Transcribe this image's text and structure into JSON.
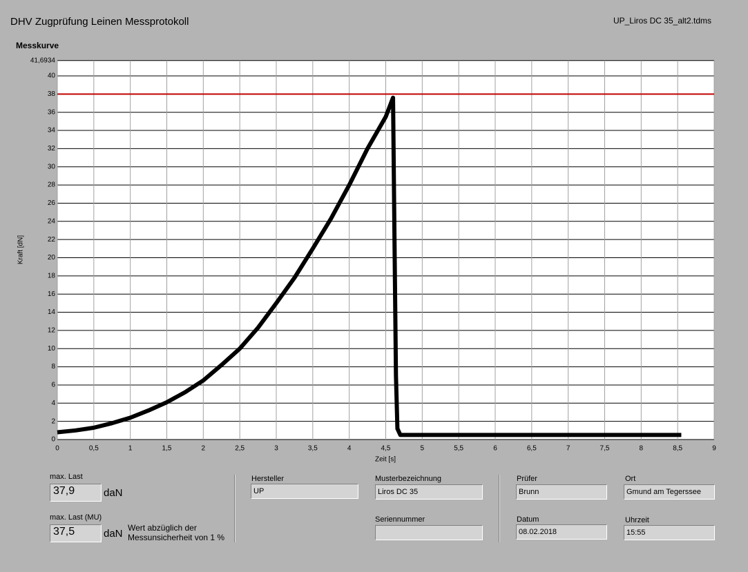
{
  "header": {
    "title": "DHV Zugprüfung Leinen Messprotokoll",
    "file": "UP_Liros DC 35_alt2.tdms"
  },
  "chart_data": {
    "type": "line",
    "title": "Messkurve",
    "x_label": "Zeit [s]",
    "y_label": "Kraft [dN]",
    "x": [
      0,
      0.25,
      0.5,
      0.75,
      1,
      1.25,
      1.5,
      1.75,
      2,
      2.25,
      2.5,
      2.75,
      3,
      3.25,
      3.5,
      3.75,
      4,
      4.25,
      4.5,
      4.6,
      4.62,
      4.64,
      4.66,
      4.7,
      5,
      6,
      7,
      8,
      8.55
    ],
    "series": [
      {
        "color": "#000000",
        "values": [
          0.8,
          1.0,
          1.3,
          1.8,
          2.4,
          3.2,
          4.1,
          5.2,
          6.5,
          8.2,
          10,
          12.3,
          15,
          17.8,
          21,
          24.3,
          28,
          32,
          35.5,
          37.6,
          22,
          7,
          1.2,
          0.5,
          0.5,
          0.5,
          0.5,
          0.5,
          0.5
        ]
      }
    ],
    "reference_lines": [
      {
        "value": 38,
        "color": "#c00000"
      }
    ],
    "xlim": [
      0,
      9
    ],
    "xticks": [
      0,
      {
        "value": 0.5,
        "label": "0,5"
      },
      1,
      {
        "value": 1.5,
        "label": "1,5"
      },
      2,
      {
        "value": 2.5,
        "label": "2,5"
      },
      3,
      {
        "value": 3.5,
        "label": "3,5"
      },
      4,
      {
        "value": 4.5,
        "label": "4,5"
      },
      5,
      {
        "value": 5.5,
        "label": "5,5"
      },
      6,
      {
        "value": 6.5,
        "label": "6,5"
      },
      7,
      {
        "value": 7.5,
        "label": "7,5"
      },
      8,
      {
        "value": 8.5,
        "label": "8,5"
      },
      9
    ],
    "ylim": [
      0,
      41.6934
    ],
    "yticks": [
      0,
      2,
      4,
      6,
      8,
      10,
      12,
      14,
      16,
      18,
      20,
      22,
      24,
      26,
      28,
      30,
      32,
      34,
      36,
      38,
      40,
      {
        "value": 41.6934,
        "label": "41,6934"
      }
    ],
    "grid": true
  },
  "results": {
    "max_label": "max. Last",
    "max_value": "37,9",
    "max_unit": "daN",
    "mu_label": "max. Last (MU)",
    "mu_value": "37,5",
    "mu_unit": "daN",
    "note_line1": "Wert abzüglich der",
    "note_line2": "Messunsicherheit von 1 %"
  },
  "fields": {
    "hersteller_label": "Hersteller",
    "hersteller": "UP",
    "muster_label": "Musterbezeichnung",
    "muster": "Liros DC 35",
    "serien_label": "Seriennummer",
    "pruefer_label": "Prüfer",
    "pruefer": "Brunn",
    "ort_label": "Ort",
    "ort": "Gmund am Tegerssee",
    "datum_label": "Datum",
    "datum": "08.02.2018",
    "uhrzeit_label": "Uhrzeit",
    "uhrzeit": "15:55"
  }
}
